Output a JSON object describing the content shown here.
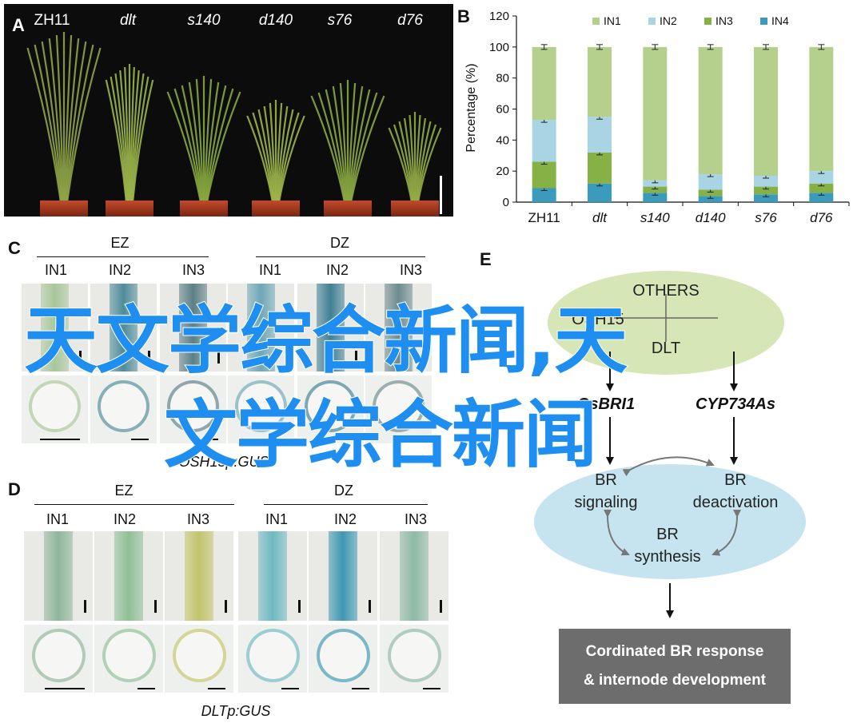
{
  "panels": {
    "a": {
      "letter": "A",
      "labels": [
        "ZH11",
        "dlt",
        "s140",
        "d140",
        "s76",
        "d76"
      ]
    },
    "b": {
      "letter": "B"
    },
    "c": {
      "letter": "C",
      "group_left": "EZ",
      "group_right": "DZ",
      "columns": [
        "IN1",
        "IN2",
        "IN3",
        "IN1",
        "IN2",
        "IN3"
      ],
      "caption": "OSH15p:GUS"
    },
    "d": {
      "letter": "D",
      "group_left": "EZ",
      "group_right": "DZ",
      "columns": [
        "IN1",
        "IN2",
        "IN3",
        "IN1",
        "IN2",
        "IN3"
      ],
      "caption": "DLTp:GUS"
    },
    "e": {
      "letter": "E",
      "others": "OTHERS",
      "osh15": "OSH15",
      "dlt": "DLT",
      "osbri1": "OsBRI1",
      "cyp": "CYP734As",
      "br_signaling_1": "BR",
      "br_signaling_2": "signaling",
      "br_deactivation_1": "BR",
      "br_deactivation_2": "deactivation",
      "br_synthesis_1": "BR",
      "br_synthesis_2": "synthesis",
      "response_1": "Cordinated BR response",
      "response_2": "& internode development"
    }
  },
  "watermark": {
    "line1": "天文学综合新闻,天",
    "line2": "文学综合新闻"
  },
  "chart_data": {
    "type": "bar",
    "stacked": true,
    "categories": [
      "ZH11",
      "dlt",
      "s140",
      "d140",
      "s76",
      "d76"
    ],
    "series": [
      {
        "name": "IN1",
        "values": [
          47,
          45,
          86,
          82,
          83,
          80
        ],
        "color": "#b5cf8c"
      },
      {
        "name": "IN2",
        "values": [
          27,
          23,
          4,
          10,
          7,
          8
        ],
        "color": "#a9d4e3"
      },
      {
        "name": "IN3",
        "values": [
          17,
          20,
          4,
          4,
          5,
          6
        ],
        "color": "#86b144"
      },
      {
        "name": "IN4",
        "values": [
          9,
          12,
          6,
          4,
          5,
          6
        ],
        "color": "#3b9bbd"
      }
    ],
    "ylabel": "Percentage (%)",
    "ylim": [
      0,
      120
    ],
    "yticks": [
      0,
      20,
      40,
      60,
      80,
      100,
      120
    ],
    "legend": "top"
  }
}
